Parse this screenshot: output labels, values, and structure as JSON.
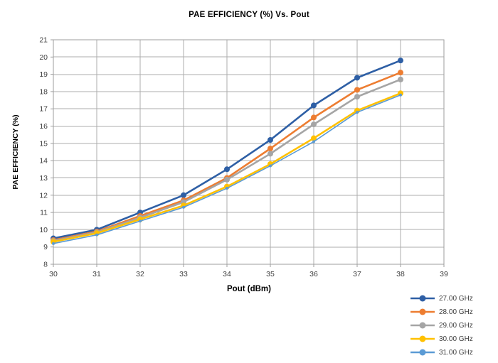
{
  "page": {
    "background": "#FFFFFF"
  },
  "chart_data": {
    "type": "line",
    "title": "PAE EFFICIENCY (%) Vs. Pout",
    "xlabel": "Pout (dBm)",
    "ylabel": "PAE EFFICIENCY (%)",
    "xlim": [
      30,
      39
    ],
    "ylim": [
      8,
      21
    ],
    "x_ticks": [
      30,
      31,
      32,
      33,
      34,
      35,
      36,
      37,
      38,
      39
    ],
    "y_ticks": [
      8,
      9,
      10,
      11,
      12,
      13,
      14,
      15,
      16,
      17,
      18,
      19,
      20,
      21
    ],
    "grid": true,
    "legend_position": "bottom-right",
    "x": [
      30,
      31,
      32,
      33,
      34,
      35,
      36,
      37,
      38
    ],
    "series": [
      {
        "name": "27.00 GHz",
        "color": "#2E5FA5",
        "line_width": 2.6,
        "marker_radius": 4,
        "values": [
          9.5,
          10.0,
          11.0,
          12.0,
          13.5,
          15.2,
          17.2,
          18.8,
          19.8
        ]
      },
      {
        "name": "28.00 GHz",
        "color": "#ED7D31",
        "line_width": 2.6,
        "marker_radius": 4,
        "values": [
          9.4,
          9.9,
          10.8,
          11.7,
          13.0,
          14.7,
          16.5,
          18.1,
          19.1
        ]
      },
      {
        "name": "29.00 GHz",
        "color": "#A5A5A5",
        "line_width": 2.6,
        "marker_radius": 4,
        "values": [
          9.35,
          9.85,
          10.7,
          11.6,
          12.9,
          14.4,
          16.1,
          17.7,
          18.7
        ]
      },
      {
        "name": "30.00 GHz",
        "color": "#FFC000",
        "line_width": 2.6,
        "marker_radius": 4,
        "values": [
          9.3,
          9.8,
          10.6,
          11.4,
          12.5,
          13.8,
          15.3,
          16.9,
          17.9
        ]
      },
      {
        "name": "31.00 GHz",
        "color": "#5B9BD5",
        "line_width": 1.6,
        "marker_radius": 2,
        "values": [
          9.2,
          9.7,
          10.5,
          11.3,
          12.4,
          13.7,
          15.1,
          16.8,
          17.8
        ]
      }
    ],
    "styles": {
      "grid_color": "#ACACAC",
      "axis_color": "#9E9E9E",
      "tick_label_color": "#404040"
    }
  }
}
